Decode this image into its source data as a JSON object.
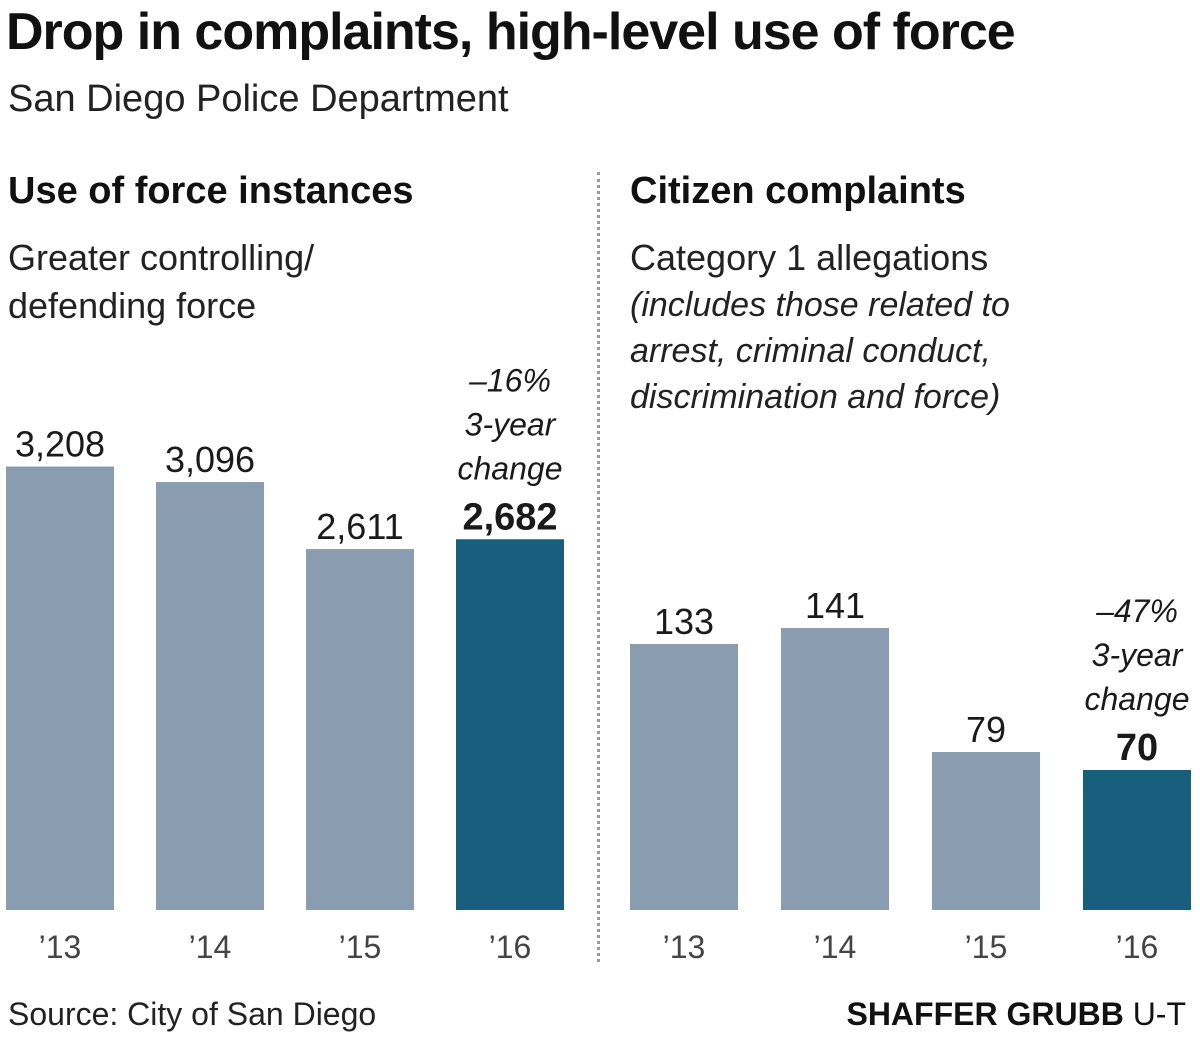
{
  "header": {
    "title": "Drop in complaints, high-level use of force",
    "subtitle": "San Diego Police Department"
  },
  "colors": {
    "bar": "#8a9cb0",
    "highlight": "#185f7d",
    "text": "#1a1a1a",
    "tick": "#444444"
  },
  "chart_data": [
    {
      "type": "bar",
      "title": "Use of force instances",
      "subtitle": [
        "Greater controlling/",
        "defending force"
      ],
      "categories": [
        "’13",
        "’14",
        "’15",
        "’16"
      ],
      "values": [
        3208,
        3096,
        2611,
        2682
      ],
      "value_labels": [
        "3,208",
        "3,096",
        "2,611",
        "2,682"
      ],
      "highlight_index": 3,
      "annotation": [
        "–16%",
        "3-year",
        "change"
      ],
      "ylim": [
        0,
        3400
      ]
    },
    {
      "type": "bar",
      "title": "Citizen complaints",
      "subtitle": [
        "Category 1 allegations"
      ],
      "note": [
        "(includes those related to",
        "arrest, criminal conduct,",
        "discrimination and force)"
      ],
      "categories": [
        "’13",
        "’14",
        "’15",
        "’16"
      ],
      "values": [
        133,
        141,
        79,
        70
      ],
      "value_labels": [
        "133",
        "141",
        "79",
        "70"
      ],
      "highlight_index": 3,
      "annotation": [
        "–47%",
        "3-year",
        "change"
      ],
      "ylim": [
        0,
        235
      ]
    }
  ],
  "footer": {
    "source": "Source: City of San Diego",
    "credit_bold": "SHAFFER GRUBB",
    "credit_rest": " U-T"
  }
}
